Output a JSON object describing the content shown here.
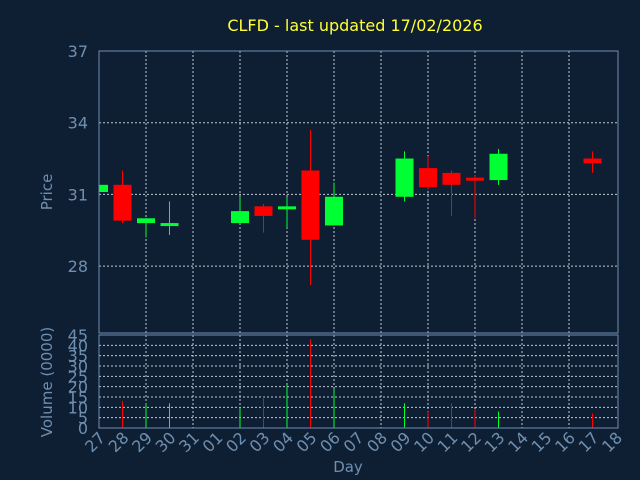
{
  "chart_data": {
    "type": "candlestick",
    "title": "CLFD - last updated 17/02/2026",
    "ylabel": "Price",
    "ylabel_volume": "Volume (0000)",
    "xlabel": "Day",
    "ylim": [
      25.2,
      37
    ],
    "yticks": [
      "37",
      "34",
      "31",
      "28"
    ],
    "ylim_volume": [
      0,
      45
    ],
    "yticks_volume": [
      "45",
      "40",
      "35",
      "30",
      "25",
      "20",
      "15",
      "10",
      "5",
      "0"
    ],
    "categories": [
      "27",
      "28",
      "29",
      "30",
      "31",
      "01",
      "02",
      "03",
      "04",
      "05",
      "06",
      "07",
      "08",
      "09",
      "10",
      "11",
      "12",
      "13",
      "14",
      "15",
      "16",
      "17",
      "18"
    ],
    "colors": {
      "up": "#00ff33",
      "down": "#ff0000",
      "background": "#0f1f33",
      "title": "#ffff33",
      "axis": "#6f8fb0"
    },
    "candles": [
      {
        "day": "27",
        "open": 31.1,
        "close": 31.4,
        "high": 31.4,
        "low": 31.1,
        "volume": 0
      },
      {
        "day": "28",
        "open": 31.4,
        "close": 29.9,
        "high": 32.0,
        "low": 29.8,
        "volume": 13
      },
      {
        "day": "29",
        "open": 29.8,
        "close": 30.0,
        "high": 30.0,
        "low": 29.2,
        "volume": 12
      },
      {
        "day": "30",
        "open": 29.7,
        "close": 29.8,
        "high": 30.7,
        "low": 29.3,
        "volume": 12
      },
      {
        "day": "02",
        "open": 29.8,
        "close": 30.3,
        "high": 30.9,
        "low": 29.8,
        "volume": 10
      },
      {
        "day": "03",
        "open": 30.5,
        "close": 30.1,
        "high": 30.6,
        "low": 29.4,
        "volume": 15
      },
      {
        "day": "04",
        "open": 30.4,
        "close": 30.5,
        "high": 30.9,
        "low": 29.6,
        "volume": 21
      },
      {
        "day": "05",
        "open": 32.0,
        "close": 29.1,
        "high": 33.7,
        "low": 27.2,
        "volume": 43
      },
      {
        "day": "06",
        "open": 29.7,
        "close": 30.9,
        "high": 31.5,
        "low": 29.7,
        "volume": 19
      },
      {
        "day": "09",
        "open": 30.9,
        "close": 32.5,
        "high": 32.8,
        "low": 30.7,
        "volume": 12
      },
      {
        "day": "10",
        "open": 32.1,
        "close": 31.3,
        "high": 32.6,
        "low": 31.2,
        "volume": 8
      },
      {
        "day": "11",
        "open": 31.9,
        "close": 31.4,
        "high": 32.0,
        "low": 30.1,
        "volume": 12
      },
      {
        "day": "12",
        "open": 31.7,
        "close": 31.6,
        "high": 31.8,
        "low": 30.0,
        "volume": 9
      },
      {
        "day": "13",
        "open": 31.6,
        "close": 32.7,
        "high": 32.9,
        "low": 31.4,
        "volume": 8
      },
      {
        "day": "17",
        "open": 32.5,
        "close": 32.3,
        "high": 32.8,
        "low": 31.9,
        "volume": 7
      }
    ]
  }
}
